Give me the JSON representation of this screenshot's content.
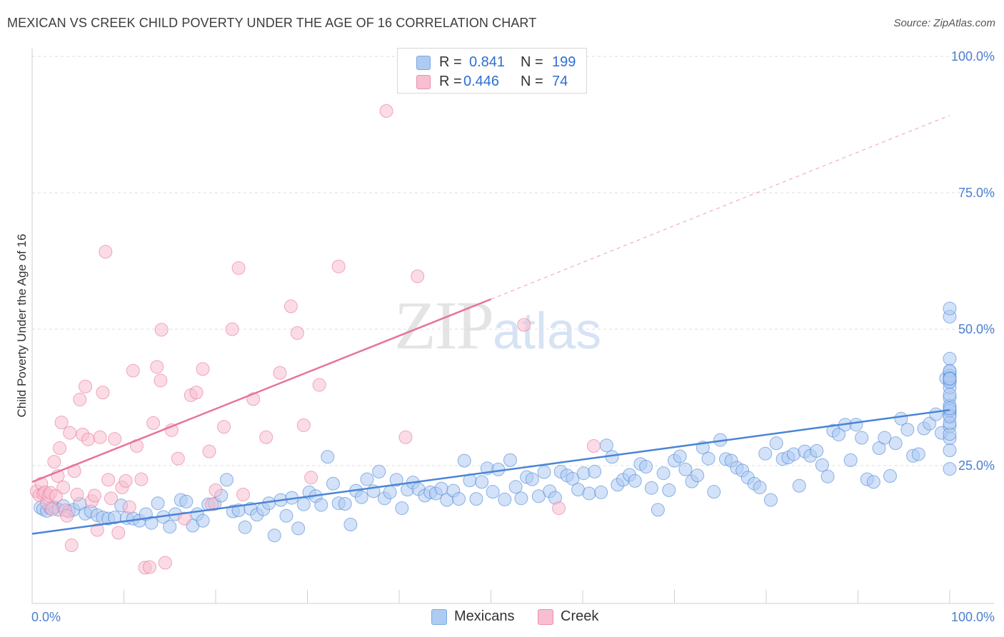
{
  "title": "MEXICAN VS CREEK CHILD POVERTY UNDER THE AGE OF 16 CORRELATION CHART",
  "source": "Source: ZipAtlas.com",
  "watermark": {
    "zip": "ZIP",
    "atlas": "atlas"
  },
  "legend": {
    "rows": [
      {
        "r_label": "R =",
        "r_value": "0.841",
        "n_label": "N =",
        "n_value": "199",
        "color": "#aecbf2"
      },
      {
        "r_label": "R =",
        "r_value": "0.446",
        "n_label": "N =",
        "n_value": "74",
        "color": "#f7bfd0"
      }
    ]
  },
  "bottom_legend": [
    {
      "label": "Mexicans",
      "color": "#aecbf2"
    },
    {
      "label": "Creek",
      "color": "#f7bfd0"
    }
  ],
  "chart_data": {
    "type": "scatter",
    "title": "MEXICAN VS CREEK CHILD POVERTY UNDER THE AGE OF 16 CORRELATION CHART",
    "xlabel": "",
    "ylabel": "Child Poverty Under the Age of 16",
    "xlim": [
      0,
      100
    ],
    "ylim": [
      0,
      100
    ],
    "x_tick_labels": [
      "0.0%",
      "100.0%"
    ],
    "y_tick_labels": [
      "25.0%",
      "50.0%",
      "75.0%",
      "100.0%"
    ],
    "y_ticks": [
      25,
      50,
      75,
      100
    ],
    "grid": "horizontal dashed",
    "legend_position": "top-center",
    "series": [
      {
        "name": "Mexicans",
        "color": "#4a85d6",
        "fill": "#aecbf2",
        "trend": {
          "x0": 0,
          "y0": 12.5,
          "x1": 100,
          "y1": 35.2
        },
        "points": [
          [
            0.9,
            17.3
          ],
          [
            1.2,
            17.0
          ],
          [
            1.6,
            16.7
          ],
          [
            2.0,
            17.2
          ],
          [
            2.4,
            17.4
          ],
          [
            2.9,
            16.9
          ],
          [
            3.4,
            17.6
          ],
          [
            4.0,
            16.6
          ],
          [
            4.5,
            16.9
          ],
          [
            5.2,
            18.0
          ],
          [
            5.8,
            16.2
          ],
          [
            6.4,
            16.6
          ],
          [
            7.1,
            15.9
          ],
          [
            7.7,
            15.5
          ],
          [
            8.3,
            15.3
          ],
          [
            9.0,
            15.5
          ],
          [
            9.7,
            17.7
          ],
          [
            10.3,
            15.4
          ],
          [
            11.0,
            15.3
          ],
          [
            11.7,
            14.9
          ],
          [
            12.4,
            16.1
          ],
          [
            13.0,
            14.5
          ],
          [
            13.7,
            18.1
          ],
          [
            14.3,
            15.6
          ],
          [
            15.0,
            13.8
          ],
          [
            15.6,
            16.1
          ],
          [
            16.2,
            18.7
          ],
          [
            16.8,
            18.4
          ],
          [
            17.5,
            14.0
          ],
          [
            18.0,
            16.1
          ],
          [
            18.6,
            14.9
          ],
          [
            19.2,
            17.9
          ],
          [
            19.9,
            18.0
          ],
          [
            20.6,
            19.5
          ],
          [
            21.2,
            22.4
          ],
          [
            21.9,
            16.6
          ],
          [
            22.5,
            16.8
          ],
          [
            23.2,
            13.7
          ],
          [
            23.8,
            17.1
          ],
          [
            24.5,
            16.0
          ],
          [
            25.2,
            17.0
          ],
          [
            25.8,
            18.1
          ],
          [
            26.4,
            12.2
          ],
          [
            27.1,
            18.7
          ],
          [
            27.7,
            15.8
          ],
          [
            28.3,
            19.1
          ],
          [
            29.0,
            13.5
          ],
          [
            29.6,
            17.9
          ],
          [
            30.2,
            20.1
          ],
          [
            30.9,
            19.4
          ],
          [
            31.5,
            17.8
          ],
          [
            32.2,
            26.6
          ],
          [
            32.8,
            21.7
          ],
          [
            33.4,
            18.1
          ],
          [
            34.1,
            18.0
          ],
          [
            34.7,
            14.2
          ],
          [
            35.3,
            20.4
          ],
          [
            35.9,
            19.2
          ],
          [
            36.5,
            22.5
          ],
          [
            37.2,
            20.3
          ],
          [
            37.8,
            23.9
          ],
          [
            38.4,
            19.0
          ],
          [
            39.0,
            20.1
          ],
          [
            39.7,
            22.4
          ],
          [
            40.3,
            17.2
          ],
          [
            40.9,
            20.6
          ],
          [
            41.5,
            21.9
          ],
          [
            42.1,
            20.7
          ],
          [
            42.8,
            19.5
          ],
          [
            43.4,
            20.1
          ],
          [
            44.0,
            19.9
          ],
          [
            44.6,
            20.8
          ],
          [
            45.2,
            18.7
          ],
          [
            45.9,
            20.4
          ],
          [
            46.5,
            18.9
          ],
          [
            47.1,
            25.9
          ],
          [
            47.7,
            22.3
          ],
          [
            48.4,
            18.9
          ],
          [
            49.0,
            22.0
          ],
          [
            49.6,
            24.5
          ],
          [
            50.2,
            20.2
          ],
          [
            50.8,
            24.3
          ],
          [
            51.5,
            18.8
          ],
          [
            52.1,
            26.0
          ],
          [
            52.7,
            21.1
          ],
          [
            53.3,
            19.0
          ],
          [
            53.9,
            22.9
          ],
          [
            54.5,
            22.5
          ],
          [
            55.2,
            19.4
          ],
          [
            55.8,
            23.8
          ],
          [
            56.4,
            20.3
          ],
          [
            57.0,
            19.1
          ],
          [
            57.6,
            23.9
          ],
          [
            58.3,
            23.2
          ],
          [
            58.9,
            22.6
          ],
          [
            59.5,
            20.6
          ],
          [
            60.1,
            23.6
          ],
          [
            60.7,
            19.9
          ],
          [
            61.3,
            23.9
          ],
          [
            62.0,
            20.1
          ],
          [
            62.6,
            28.7
          ],
          [
            63.2,
            26.6
          ],
          [
            63.8,
            21.5
          ],
          [
            64.4,
            22.4
          ],
          [
            65.1,
            23.3
          ],
          [
            65.7,
            22.2
          ],
          [
            66.3,
            25.3
          ],
          [
            66.9,
            24.8
          ],
          [
            67.5,
            20.9
          ],
          [
            68.2,
            16.9
          ],
          [
            68.8,
            23.6
          ],
          [
            69.4,
            20.5
          ],
          [
            70.0,
            25.9
          ],
          [
            70.6,
            26.7
          ],
          [
            71.2,
            24.3
          ],
          [
            71.9,
            22.1
          ],
          [
            72.5,
            23.2
          ],
          [
            73.1,
            28.3
          ],
          [
            73.7,
            26.3
          ],
          [
            74.3,
            20.2
          ],
          [
            75.0,
            29.7
          ],
          [
            75.6,
            26.2
          ],
          [
            76.2,
            25.9
          ],
          [
            76.8,
            24.6
          ],
          [
            77.4,
            24.1
          ],
          [
            78.0,
            22.8
          ],
          [
            78.7,
            21.7
          ],
          [
            79.3,
            21.0
          ],
          [
            79.9,
            27.2
          ],
          [
            80.5,
            18.7
          ],
          [
            81.1,
            29.1
          ],
          [
            81.8,
            26.2
          ],
          [
            82.4,
            26.5
          ],
          [
            83.0,
            27.1
          ],
          [
            83.6,
            21.3
          ],
          [
            84.2,
            27.6
          ],
          [
            84.8,
            26.8
          ],
          [
            85.5,
            27.7
          ],
          [
            86.1,
            25.1
          ],
          [
            86.7,
            23.0
          ],
          [
            87.3,
            31.4
          ],
          [
            87.9,
            30.7
          ],
          [
            88.6,
            32.5
          ],
          [
            89.2,
            26.0
          ],
          [
            89.8,
            32.5
          ],
          [
            90.4,
            30.1
          ],
          [
            91.0,
            22.5
          ],
          [
            91.7,
            22.0
          ],
          [
            92.3,
            28.2
          ],
          [
            92.9,
            30.1
          ],
          [
            93.5,
            23.1
          ],
          [
            94.1,
            29.1
          ],
          [
            94.7,
            33.6
          ],
          [
            95.4,
            31.6
          ],
          [
            96.0,
            26.8
          ],
          [
            96.6,
            27.1
          ],
          [
            97.2,
            31.8
          ],
          [
            97.8,
            32.7
          ],
          [
            98.5,
            34.4
          ],
          [
            99.1,
            31.0
          ],
          [
            99.6,
            41.0
          ],
          [
            100.0,
            52.3
          ],
          [
            100.0,
            32.2
          ],
          [
            100.0,
            35.0
          ],
          [
            100.0,
            30.0
          ],
          [
            100.0,
            27.8
          ],
          [
            100.0,
            42.2
          ],
          [
            100.0,
            37.4
          ],
          [
            100.0,
            34.3
          ],
          [
            100.0,
            36.0
          ],
          [
            100.0,
            40.5
          ],
          [
            100.0,
            39.3
          ],
          [
            100.0,
            30.8
          ],
          [
            100.0,
            40.3
          ],
          [
            100.0,
            35.1
          ],
          [
            100.0,
            32.8
          ],
          [
            100.0,
            34.0
          ],
          [
            100.0,
            24.4
          ],
          [
            100.0,
            44.6
          ],
          [
            100.0,
            41.5
          ],
          [
            100.0,
            38.0
          ],
          [
            100.0,
            53.8
          ],
          [
            100.0,
            42.4
          ],
          [
            100.0,
            41.0
          ],
          [
            100.0,
            35.5
          ],
          [
            100.0,
            40.9
          ]
        ]
      },
      {
        "name": "Creek",
        "color": "#e8739a",
        "fill": "#f7bfd0",
        "trend": {
          "x0": 0,
          "y0": 22.0,
          "x1": 50,
          "y1": 55.5
        },
        "trend_dashed": {
          "x0": 50,
          "y0": 55.5,
          "x1": 100,
          "y1": 89.2
        },
        "points": [
          [
            0.5,
            20.3
          ],
          [
            0.8,
            19.6
          ],
          [
            1.0,
            21.7
          ],
          [
            1.2,
            19.8
          ],
          [
            1.4,
            20.1
          ],
          [
            1.6,
            18.2
          ],
          [
            1.8,
            19.5
          ],
          [
            2.0,
            20.0
          ],
          [
            2.2,
            17.0
          ],
          [
            2.4,
            25.7
          ],
          [
            2.6,
            19.4
          ],
          [
            2.8,
            23.1
          ],
          [
            3.0,
            28.2
          ],
          [
            3.2,
            32.9
          ],
          [
            3.4,
            21.0
          ],
          [
            3.6,
            16.8
          ],
          [
            3.8,
            15.8
          ],
          [
            4.1,
            31.0
          ],
          [
            4.3,
            10.4
          ],
          [
            4.6,
            24.0
          ],
          [
            4.9,
            19.7
          ],
          [
            5.2,
            37.1
          ],
          [
            5.5,
            30.7
          ],
          [
            5.8,
            39.5
          ],
          [
            6.1,
            29.8
          ],
          [
            6.5,
            18.5
          ],
          [
            6.8,
            19.5
          ],
          [
            7.1,
            13.2
          ],
          [
            7.4,
            30.2
          ],
          [
            7.7,
            38.4
          ],
          [
            8.0,
            64.2
          ],
          [
            8.3,
            22.4
          ],
          [
            8.6,
            19.0
          ],
          [
            9.0,
            29.9
          ],
          [
            9.4,
            12.7
          ],
          [
            9.8,
            21.0
          ],
          [
            10.2,
            22.2
          ],
          [
            10.6,
            17.4
          ],
          [
            11.0,
            42.4
          ],
          [
            11.4,
            28.6
          ],
          [
            11.9,
            22.5
          ],
          [
            12.3,
            6.3
          ],
          [
            12.8,
            6.4
          ],
          [
            13.2,
            32.8
          ],
          [
            13.6,
            43.1
          ],
          [
            14.0,
            40.6
          ],
          [
            14.1,
            49.9
          ],
          [
            14.5,
            7.2
          ],
          [
            15.2,
            31.5
          ],
          [
            15.9,
            26.3
          ],
          [
            16.6,
            15.3
          ],
          [
            17.3,
            37.9
          ],
          [
            17.9,
            38.4
          ],
          [
            18.6,
            42.7
          ],
          [
            19.3,
            27.6
          ],
          [
            19.6,
            17.9
          ],
          [
            20.0,
            20.5
          ],
          [
            20.9,
            32.1
          ],
          [
            21.8,
            50.0
          ],
          [
            22.5,
            61.2
          ],
          [
            23.0,
            19.7
          ],
          [
            24.1,
            37.2
          ],
          [
            25.5,
            30.2
          ],
          [
            27.0,
            42.0
          ],
          [
            28.2,
            54.2
          ],
          [
            28.9,
            49.3
          ],
          [
            29.6,
            32.4
          ],
          [
            30.4,
            22.8
          ],
          [
            31.3,
            39.8
          ],
          [
            33.4,
            61.5
          ],
          [
            38.6,
            90.0
          ],
          [
            40.7,
            30.2
          ],
          [
            42.0,
            59.7
          ],
          [
            53.6,
            50.8
          ],
          [
            57.4,
            17.2
          ],
          [
            61.2,
            28.6
          ]
        ]
      }
    ]
  }
}
